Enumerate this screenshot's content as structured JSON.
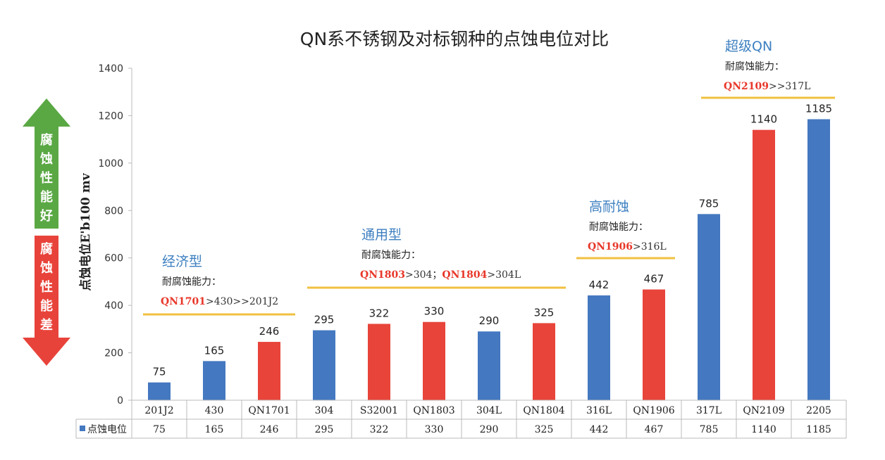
{
  "chart_data": {
    "type": "bar",
    "title": "QN系不锈钢及对标钢种的点蚀电位对比",
    "ylabel": "点蚀电位E'b100 mv",
    "ylim": [
      0,
      1400
    ],
    "yticks": [
      0,
      200,
      400,
      600,
      800,
      1000,
      1200,
      1400
    ],
    "categories": [
      "201J2",
      "430",
      "QN1701",
      "304",
      "S32001",
      "QN1803",
      "304L",
      "QN1804",
      "316L",
      "QN1906",
      "317L",
      "QN2109",
      "2205"
    ],
    "series": [
      {
        "name": "点蚀电位",
        "values": [
          75,
          165,
          246,
          295,
          322,
          330,
          290,
          325,
          442,
          467,
          785,
          1140,
          1185
        ],
        "colors": [
          "#4478c0",
          "#4478c0",
          "#e8443a",
          "#4478c0",
          "#e8443a",
          "#e8443a",
          "#4478c0",
          "#e8443a",
          "#4478c0",
          "#e8443a",
          "#4478c0",
          "#e8443a",
          "#4478c0"
        ]
      }
    ],
    "grid": false,
    "data_table": true
  },
  "arrows": {
    "up_label": [
      "腐",
      "蚀",
      "性",
      "能",
      "好"
    ],
    "down_label": [
      "腐",
      "蚀",
      "性",
      "能",
      "差"
    ],
    "up_color": "#5aa844",
    "down_color": "#e8433a"
  },
  "groups": [
    {
      "title": "经济型",
      "sub": "耐腐蚀能力：",
      "parts": [
        {
          "t": "QN1701",
          "red": true
        },
        {
          "t": ">430>>201J2",
          "red": false
        }
      ]
    },
    {
      "title": "通用型",
      "sub": "耐腐蚀能力：",
      "parts": [
        {
          "t": "QN1803",
          "red": true
        },
        {
          "t": ">304；",
          "red": false
        },
        {
          "t": "QN1804",
          "red": true
        },
        {
          "t": ">304L",
          "red": false
        }
      ]
    },
    {
      "title": "高耐蚀",
      "sub": "耐腐蚀能力：",
      "parts": [
        {
          "t": "QN1906",
          "red": true
        },
        {
          "t": ">316L",
          "red": false
        }
      ]
    },
    {
      "title": "超级QN",
      "sub": "耐腐蚀能力：",
      "parts": [
        {
          "t": "QN2109",
          "red": true
        },
        {
          "t": ">>317L",
          "red": false
        }
      ]
    }
  ],
  "colors": {
    "blue": "#4478c0",
    "red": "#e8443a",
    "divider": "#f0c040"
  }
}
